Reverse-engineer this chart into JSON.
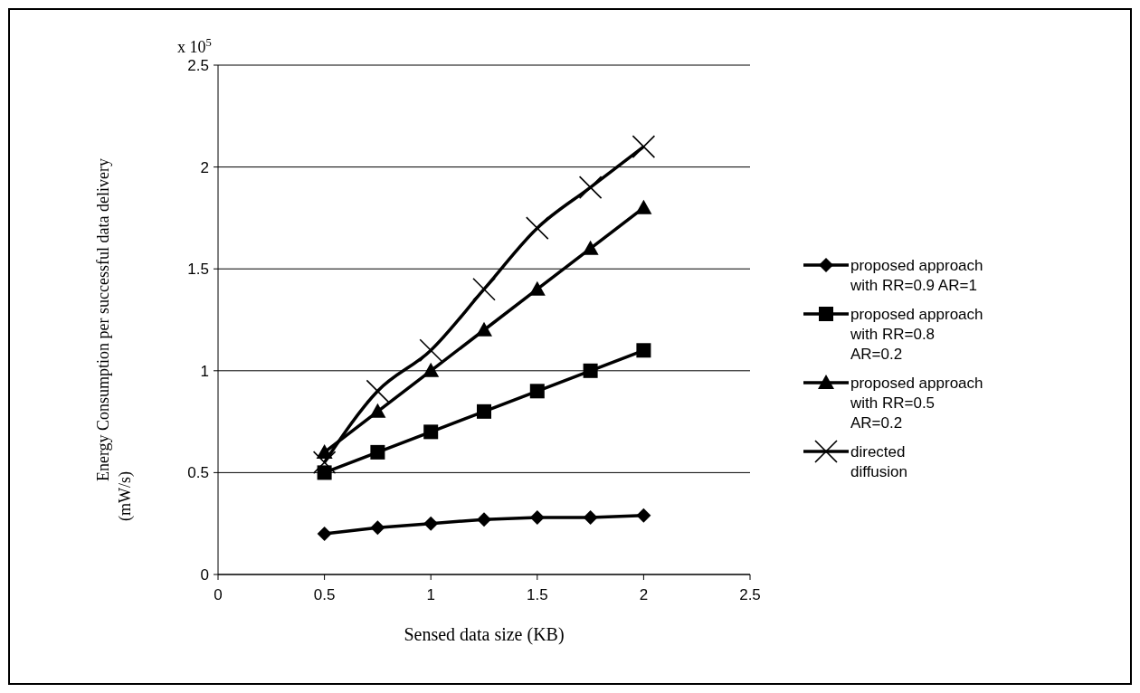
{
  "chart_data": {
    "type": "line",
    "xlabel": "Sensed data size (KB)",
    "ylabel": "Energy Consumption per successful data delivery (mW/s)",
    "annotations": [
      "x 10$^{5}$"
    ],
    "x": [
      0.5,
      0.75,
      1,
      1.25,
      1.5,
      1.75,
      2
    ],
    "series": [
      {
        "name": "proposed approach with RR=0.9 AR=1",
        "color": "#000000",
        "marker": "diamond",
        "values": [
          0.2,
          0.23,
          0.25,
          0.27,
          0.28,
          0.28,
          0.29
        ]
      },
      {
        "name": "proposed approach with RR=0.8 AR=0.2",
        "color": "#000000",
        "marker": "square",
        "values": [
          0.5,
          0.6,
          0.7,
          0.8,
          0.9,
          1.0,
          1.1
        ]
      },
      {
        "name": "proposed approach with RR=0.5 AR=0.2",
        "color": "#000000",
        "marker": "triangle",
        "values": [
          0.6,
          0.8,
          1.0,
          1.2,
          1.4,
          1.6,
          1.8
        ]
      },
      {
        "name": "directed diffusion",
        "color": "#000000",
        "marker": "cross",
        "values": [
          0.55,
          0.9,
          1.1,
          1.4,
          1.7,
          1.9,
          2.1
        ]
      }
    ],
    "xlim": [
      0,
      2.5
    ],
    "xticks": [
      0,
      0.5,
      1,
      1.5,
      2,
      2.5
    ],
    "ylim": [
      0,
      2.5
    ],
    "yticks": [
      0,
      0.5,
      1,
      1.5,
      2,
      2.5
    ],
    "grid": "y",
    "legend": "right"
  }
}
